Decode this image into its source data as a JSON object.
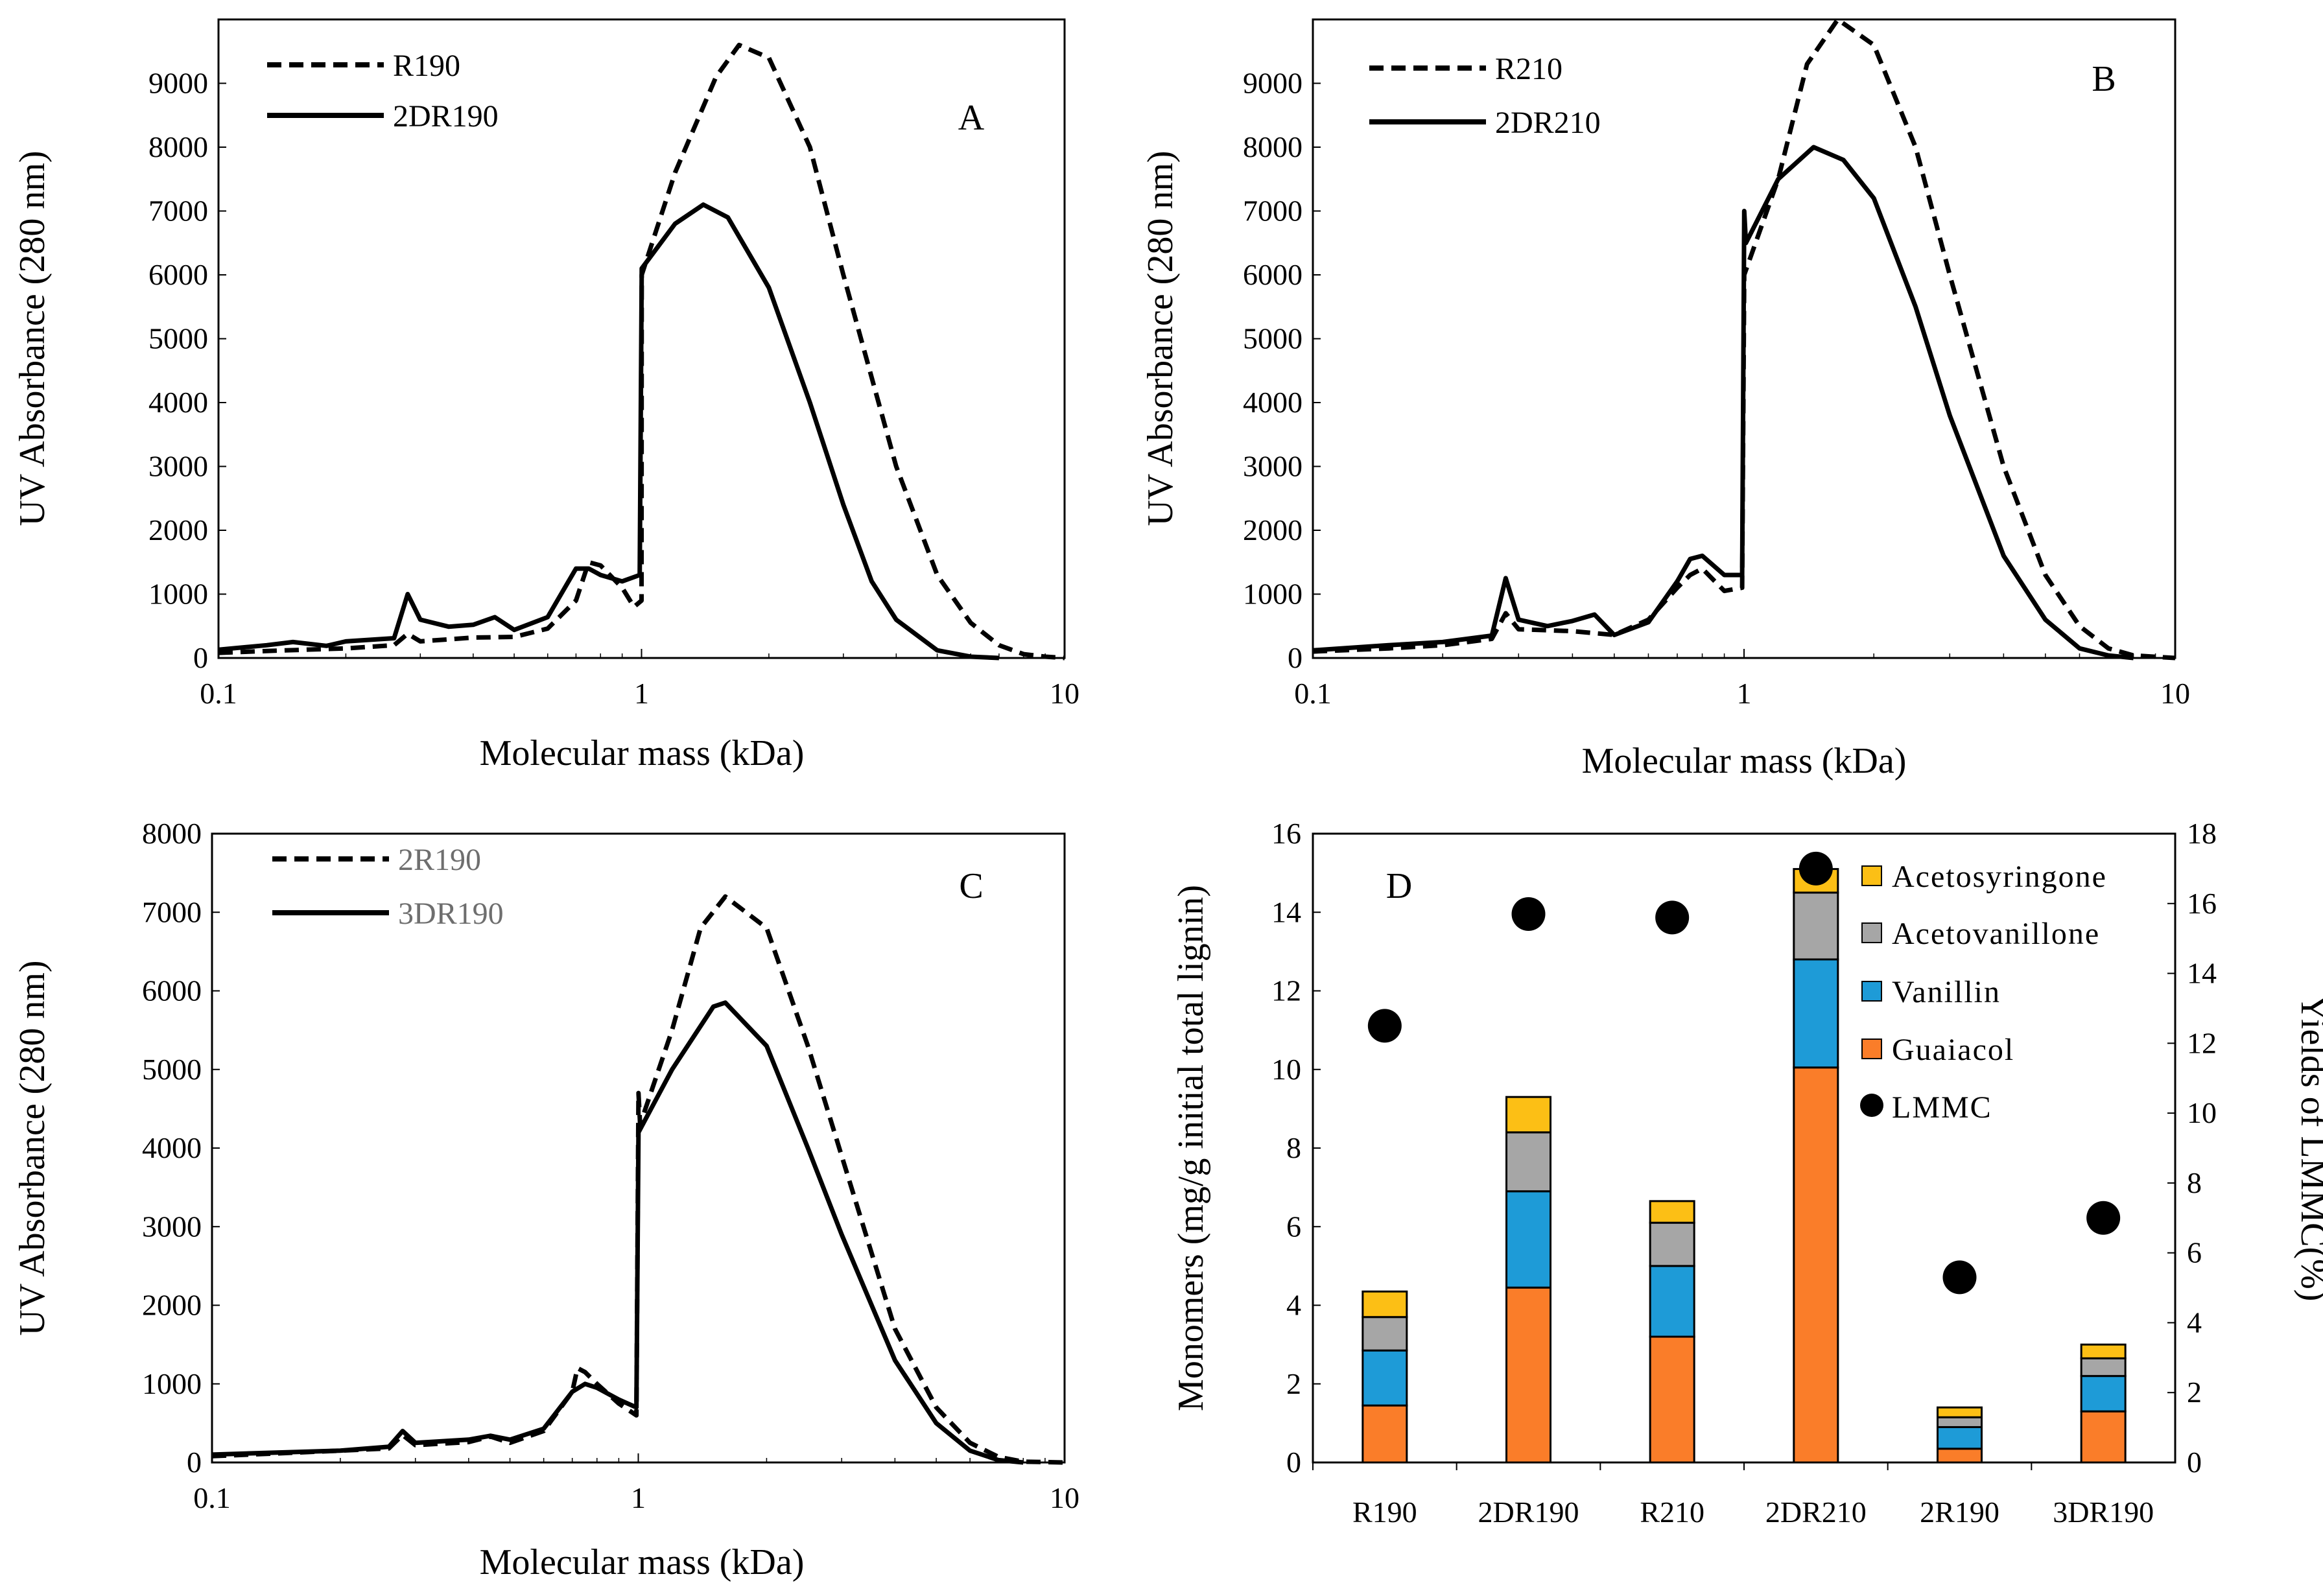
{
  "chart_data": [
    {
      "panel": "A",
      "type": "line",
      "xscale": "log",
      "xlabel": "Molecular mass (kDa)",
      "ylabel": "UV Absorbance (280 nm)",
      "xlim": [
        0.1,
        10
      ],
      "ylim": [
        0,
        10000
      ],
      "xticks": [
        "0.1",
        "1",
        "10"
      ],
      "yticks": [
        "0",
        "1000",
        "2000",
        "3000",
        "4000",
        "5000",
        "6000",
        "7000",
        "8000",
        "9000"
      ],
      "series": [
        {
          "name": "R190",
          "style": "dashed",
          "points": [
            [
              0.1,
              80
            ],
            [
              0.13,
              110
            ],
            [
              0.2,
              150
            ],
            [
              0.26,
              200
            ],
            [
              0.28,
              380
            ],
            [
              0.3,
              260
            ],
            [
              0.4,
              320
            ],
            [
              0.5,
              330
            ],
            [
              0.6,
              460
            ],
            [
              0.7,
              900
            ],
            [
              0.75,
              1500
            ],
            [
              0.8,
              1450
            ],
            [
              0.9,
              1100
            ],
            [
              0.96,
              800
            ],
            [
              1,
              900
            ],
            [
              1.001,
              6000
            ],
            [
              1.2,
              7600
            ],
            [
              1.5,
              9100
            ],
            [
              1.7,
              9600
            ],
            [
              2,
              9400
            ],
            [
              2.5,
              8000
            ],
            [
              3,
              6000
            ],
            [
              4,
              3000
            ],
            [
              5,
              1300
            ],
            [
              6,
              550
            ],
            [
              7,
              200
            ],
            [
              8,
              60
            ],
            [
              9,
              20
            ],
            [
              10,
              0
            ]
          ]
        },
        {
          "name": "2DR190",
          "style": "solid",
          "points": [
            [
              0.1,
              130
            ],
            [
              0.13,
              200
            ],
            [
              0.15,
              250
            ],
            [
              0.18,
              190
            ],
            [
              0.2,
              260
            ],
            [
              0.26,
              310
            ],
            [
              0.28,
              1000
            ],
            [
              0.3,
              600
            ],
            [
              0.35,
              490
            ],
            [
              0.4,
              520
            ],
            [
              0.45,
              640
            ],
            [
              0.5,
              440
            ],
            [
              0.6,
              640
            ],
            [
              0.7,
              1400
            ],
            [
              0.75,
              1400
            ],
            [
              0.8,
              1300
            ],
            [
              0.9,
              1200
            ],
            [
              0.99,
              1300
            ],
            [
              1.001,
              6100
            ],
            [
              1.2,
              6800
            ],
            [
              1.4,
              7100
            ],
            [
              1.6,
              6900
            ],
            [
              2,
              5800
            ],
            [
              2.5,
              4000
            ],
            [
              3,
              2400
            ],
            [
              3.5,
              1200
            ],
            [
              4,
              600
            ],
            [
              5,
              120
            ],
            [
              6,
              20
            ],
            [
              7,
              0
            ]
          ]
        }
      ]
    },
    {
      "panel": "B",
      "type": "line",
      "xscale": "log",
      "xlabel": "Molecular mass (kDa)",
      "ylabel": "UV Absorbance (280 nm)",
      "xlim": [
        0.1,
        10
      ],
      "ylim": [
        0,
        10000
      ],
      "xticks": [
        "0.1",
        "1",
        "10"
      ],
      "yticks": [
        "0",
        "1000",
        "2000",
        "3000",
        "4000",
        "5000",
        "6000",
        "7000",
        "8000",
        "9000"
      ],
      "series": [
        {
          "name": "R210",
          "style": "dashed",
          "points": [
            [
              0.1,
              100
            ],
            [
              0.15,
              150
            ],
            [
              0.2,
              200
            ],
            [
              0.26,
              300
            ],
            [
              0.28,
              700
            ],
            [
              0.3,
              450
            ],
            [
              0.4,
              420
            ],
            [
              0.5,
              360
            ],
            [
              0.6,
              600
            ],
            [
              0.7,
              1100
            ],
            [
              0.75,
              1300
            ],
            [
              0.8,
              1400
            ],
            [
              0.9,
              1050
            ],
            [
              0.99,
              1100
            ],
            [
              1.001,
              6000
            ],
            [
              1.2,
              7500
            ],
            [
              1.4,
              9300
            ],
            [
              1.65,
              10000
            ],
            [
              2,
              9600
            ],
            [
              2.5,
              8000
            ],
            [
              3,
              6000
            ],
            [
              4,
              3000
            ],
            [
              5,
              1300
            ],
            [
              6,
              500
            ],
            [
              7,
              150
            ],
            [
              8,
              40
            ],
            [
              10,
              0
            ]
          ]
        },
        {
          "name": "2DR210",
          "style": "solid",
          "points": [
            [
              0.1,
              120
            ],
            [
              0.15,
              200
            ],
            [
              0.2,
              250
            ],
            [
              0.26,
              350
            ],
            [
              0.28,
              1250
            ],
            [
              0.3,
              600
            ],
            [
              0.35,
              500
            ],
            [
              0.4,
              580
            ],
            [
              0.45,
              680
            ],
            [
              0.5,
              360
            ],
            [
              0.6,
              560
            ],
            [
              0.7,
              1200
            ],
            [
              0.75,
              1550
            ],
            [
              0.8,
              1600
            ],
            [
              0.9,
              1300
            ],
            [
              0.99,
              1300
            ],
            [
              1.001,
              7000
            ],
            [
              1.01,
              6500
            ],
            [
              1.2,
              7500
            ],
            [
              1.45,
              8000
            ],
            [
              1.7,
              7800
            ],
            [
              2,
              7200
            ],
            [
              2.5,
              5500
            ],
            [
              3,
              3800
            ],
            [
              4,
              1600
            ],
            [
              5,
              600
            ],
            [
              6,
              150
            ],
            [
              7,
              40
            ],
            [
              8,
              0
            ]
          ]
        }
      ]
    },
    {
      "panel": "C",
      "type": "line",
      "xscale": "log",
      "xlabel": "Molecular mass (kDa)",
      "ylabel": "UV Absorbance (280 nm)",
      "xlim": [
        0.1,
        10
      ],
      "ylim": [
        0,
        8000
      ],
      "xticks": [
        "0.1",
        "1",
        "10"
      ],
      "yticks": [
        "0",
        "1000",
        "2000",
        "3000",
        "4000",
        "5000",
        "6000",
        "7000",
        "8000"
      ],
      "series": [
        {
          "name": "2R190",
          "style": "dashed",
          "points": [
            [
              0.1,
              80
            ],
            [
              0.15,
              120
            ],
            [
              0.2,
              150
            ],
            [
              0.26,
              180
            ],
            [
              0.28,
              350
            ],
            [
              0.3,
              220
            ],
            [
              0.4,
              260
            ],
            [
              0.45,
              330
            ],
            [
              0.5,
              250
            ],
            [
              0.6,
              400
            ],
            [
              0.7,
              900
            ],
            [
              0.72,
              1200
            ],
            [
              0.75,
              1150
            ],
            [
              0.8,
              1000
            ],
            [
              0.9,
              750
            ],
            [
              0.99,
              600
            ],
            [
              1.001,
              4700
            ],
            [
              1.01,
              4300
            ],
            [
              1.2,
              5500
            ],
            [
              1.4,
              6800
            ],
            [
              1.6,
              7200
            ],
            [
              2,
              6800
            ],
            [
              2.5,
              5300
            ],
            [
              3,
              3900
            ],
            [
              4,
              1700
            ],
            [
              5,
              700
            ],
            [
              6,
              250
            ],
            [
              7,
              70
            ],
            [
              8,
              10
            ],
            [
              10,
              0
            ]
          ]
        },
        {
          "name": "3DR190",
          "style": "solid",
          "points": [
            [
              0.1,
              100
            ],
            [
              0.15,
              130
            ],
            [
              0.2,
              150
            ],
            [
              0.26,
              200
            ],
            [
              0.28,
              400
            ],
            [
              0.3,
              250
            ],
            [
              0.4,
              290
            ],
            [
              0.45,
              340
            ],
            [
              0.5,
              290
            ],
            [
              0.6,
              430
            ],
            [
              0.7,
              900
            ],
            [
              0.75,
              1000
            ],
            [
              0.8,
              950
            ],
            [
              0.9,
              800
            ],
            [
              0.99,
              700
            ],
            [
              1.001,
              4200
            ],
            [
              1.2,
              5000
            ],
            [
              1.5,
              5800
            ],
            [
              1.6,
              5850
            ],
            [
              2,
              5300
            ],
            [
              2.5,
              4000
            ],
            [
              3,
              2900
            ],
            [
              4,
              1300
            ],
            [
              5,
              500
            ],
            [
              6,
              150
            ],
            [
              7,
              30
            ],
            [
              8,
              0
            ]
          ]
        }
      ]
    },
    {
      "panel": "D",
      "type": "bar",
      "stacked": true,
      "categories": [
        "R190",
        "2DR190",
        "R210",
        "2DR210",
        "2R190",
        "3DR190"
      ],
      "ylabel": "Monomers (mg/g initial  total lignin)",
      "y2label": "Yields of LMMC(%)",
      "ylim": [
        0,
        16
      ],
      "y2lim": [
        0,
        18
      ],
      "yticks": [
        "0",
        "2",
        "4",
        "6",
        "8",
        "10",
        "12",
        "14",
        "16"
      ],
      "y2ticks": [
        "0",
        "2",
        "4",
        "6",
        "8",
        "10",
        "12",
        "14",
        "16",
        "18"
      ],
      "series": [
        {
          "name": "Guaiacol",
          "color": "#fa7d29",
          "values": [
            1.45,
            4.45,
            3.2,
            10.05,
            0.35,
            1.3
          ]
        },
        {
          "name": "Vanillin",
          "color": "#1e9bd7",
          "values": [
            1.4,
            2.45,
            1.8,
            2.75,
            0.55,
            0.9
          ]
        },
        {
          "name": "Acetovanillone",
          "color": "#a6a6a6",
          "values": [
            0.85,
            1.5,
            1.1,
            1.7,
            0.25,
            0.45
          ]
        },
        {
          "name": "Acetosyringone",
          "color": "#fcbf15",
          "values": [
            0.65,
            0.9,
            0.55,
            0.6,
            0.25,
            0.35
          ]
        }
      ],
      "scatter": {
        "name": "LMMC",
        "axis": "right",
        "color": "#000000",
        "values": [
          12.5,
          15.7,
          15.6,
          17.0,
          5.3,
          7.0
        ]
      },
      "legend": [
        "Acetosyringone",
        "Acetovanillone",
        "Vanillin",
        "Guaiacol",
        "LMMC"
      ]
    }
  ]
}
